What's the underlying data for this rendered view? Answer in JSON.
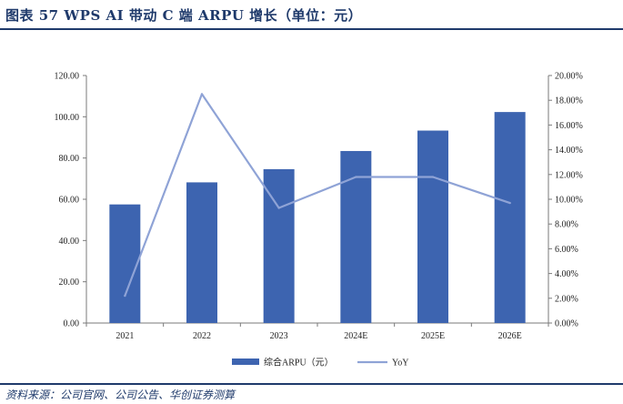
{
  "header": {
    "title": "图表 57   WPS AI 带动 C 端 ARPU 增长（单位：元）"
  },
  "footer": {
    "source": "资料来源：公司官网、公司公告、华创证券测算"
  },
  "colors": {
    "bar": "#3d64b0",
    "line": "#8fa3d6",
    "accent": "#1f3a6b"
  },
  "chart_data": {
    "type": "bar",
    "categories": [
      "2021",
      "2022",
      "2023",
      "2024E",
      "2025E",
      "2026E"
    ],
    "series": [
      {
        "name": "综合ARPU（元）",
        "type": "bar",
        "axis": "left",
        "values": [
          57.5,
          68.2,
          74.6,
          83.4,
          93.3,
          102.3
        ]
      },
      {
        "name": "YoY",
        "type": "line",
        "axis": "right",
        "values": [
          2.2,
          18.5,
          9.3,
          11.8,
          11.8,
          9.7
        ]
      }
    ],
    "y_left": {
      "min": 0,
      "max": 120,
      "step": 20,
      "ticks": [
        "0.00",
        "20.00",
        "40.00",
        "60.00",
        "80.00",
        "100.00",
        "120.00"
      ]
    },
    "y_right": {
      "min": 0,
      "max": 20,
      "step": 2,
      "ticks": [
        "0.00%",
        "2.00%",
        "4.00%",
        "6.00%",
        "8.00%",
        "10.00%",
        "12.00%",
        "14.00%",
        "16.00%",
        "18.00%",
        "20.00%"
      ]
    },
    "legend": [
      "综合ARPU（元）",
      "YoY"
    ],
    "legend_position": "bottom",
    "grid": false
  }
}
